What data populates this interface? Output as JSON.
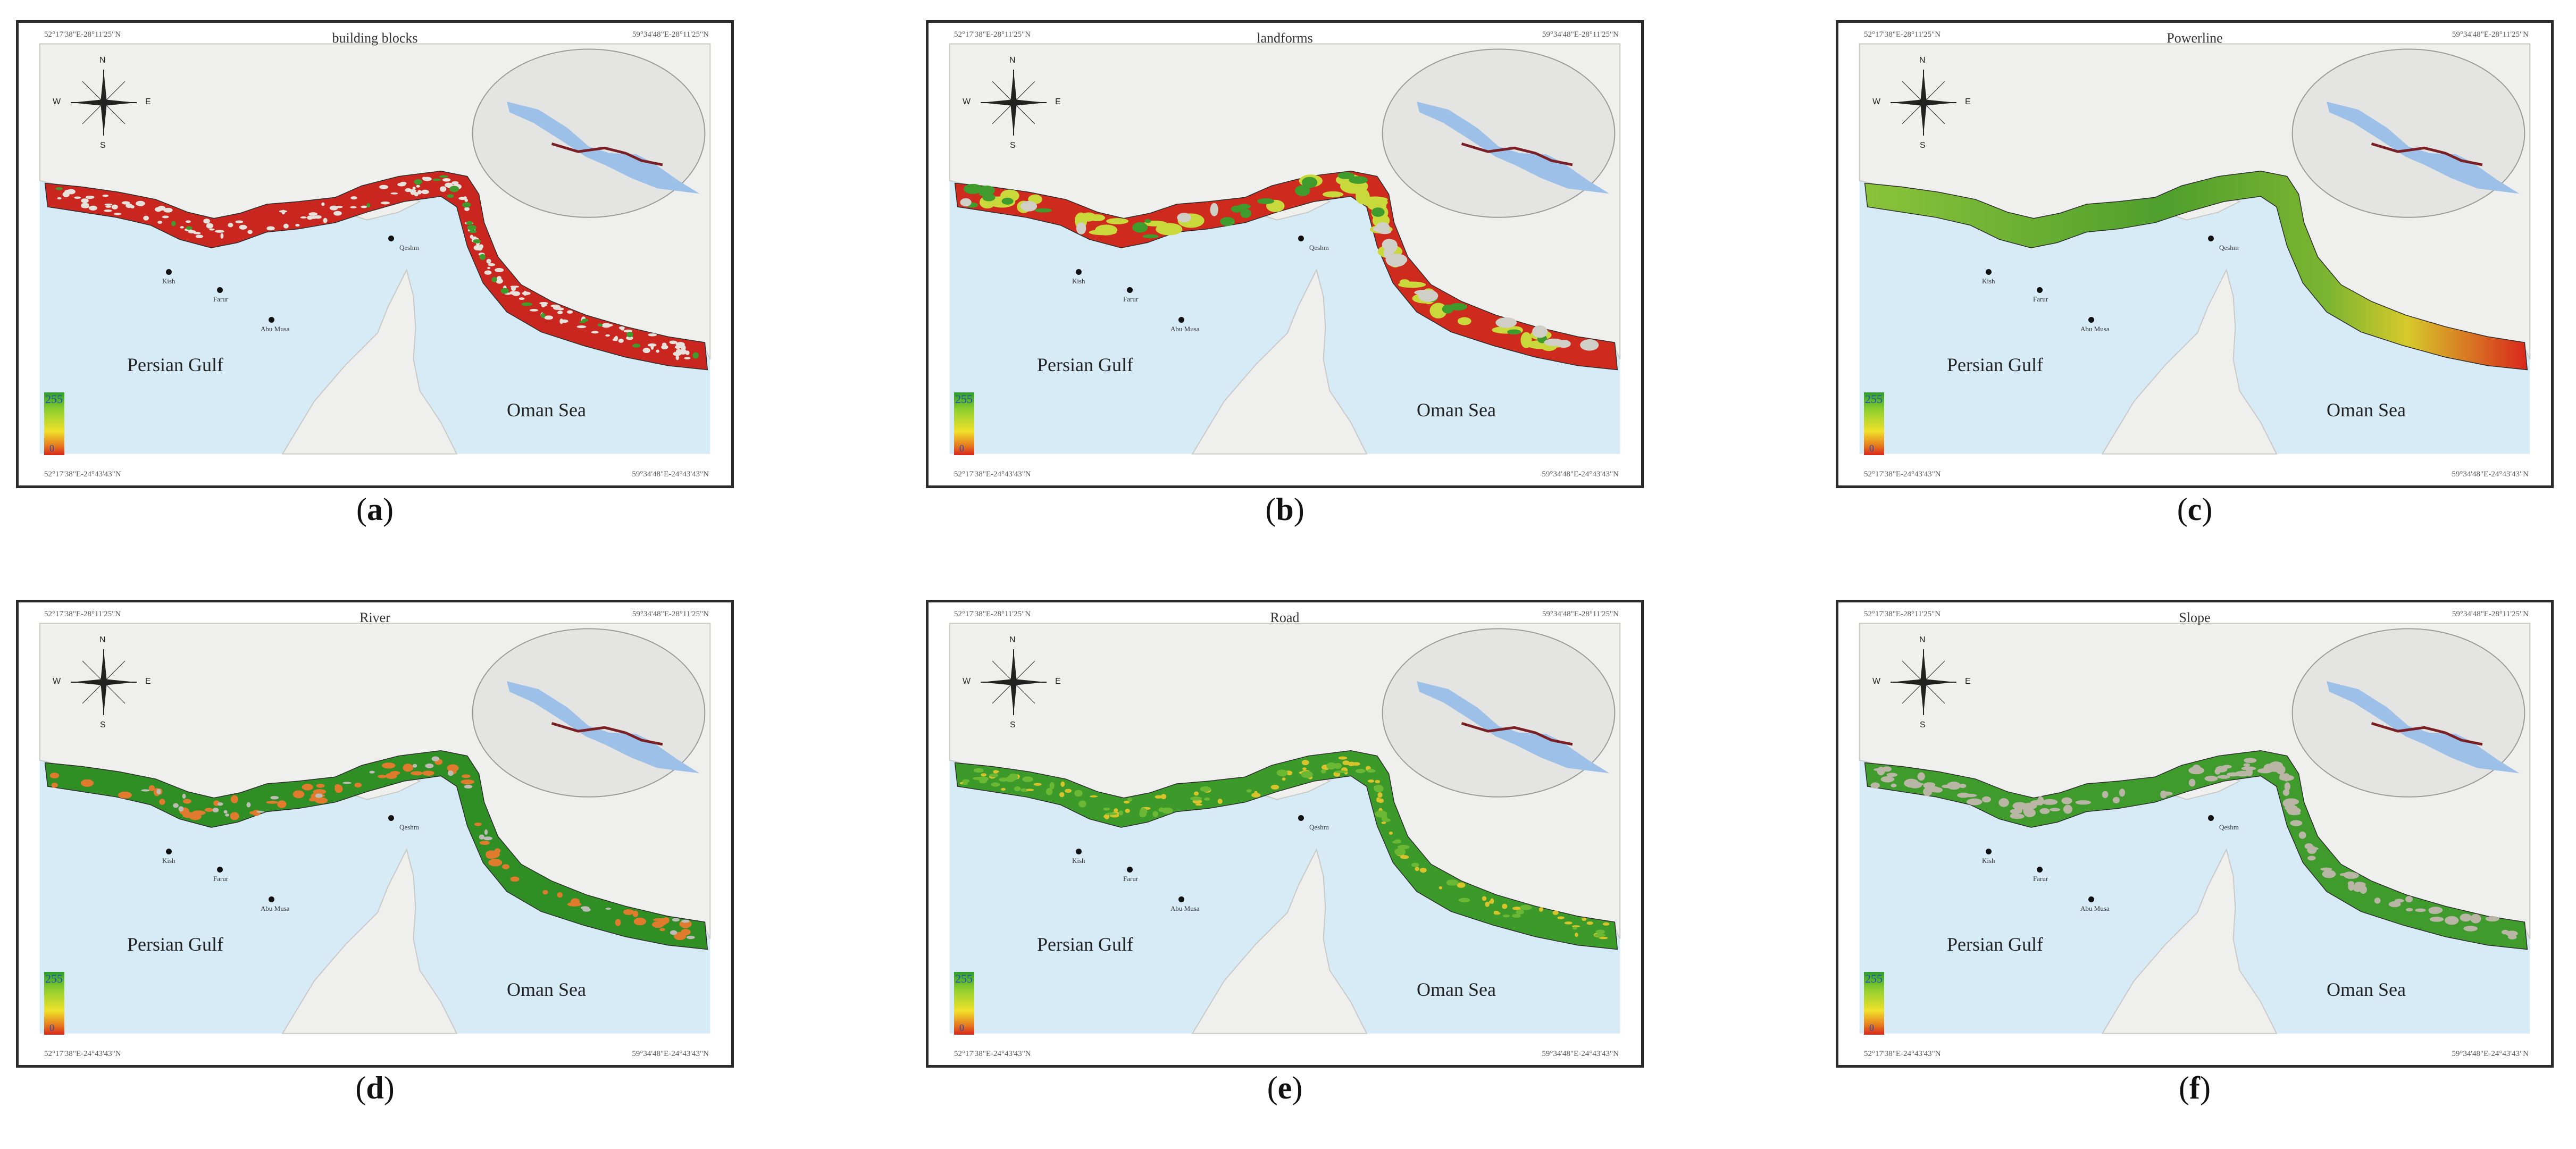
{
  "colors": {
    "sea": "#d6ebf6",
    "land": "#efefed",
    "inset_sea": "#9cc0e8",
    "coast_line": "#7a1f24",
    "legend_high": "#2e9e2a",
    "legend_mid": "#f1e12a",
    "legend_low": "#d9271c"
  },
  "map_labels": {
    "coord_top_left": "52°17'38\"E-28°11'25\"N",
    "coord_top_right": "59°34'48\"E-28°11'25\"N",
    "coord_bottom_left": "52°17'38\"E-24°43'43\"N",
    "coord_bottom_right": "59°34'48\"E-24°43'43\"N",
    "sea_west": "Persian Gulf",
    "sea_east": "Oman Sea",
    "city_1": "Kish",
    "city_2": "Farur",
    "city_3": "Abu Musa",
    "city_4": "Qeshm",
    "compass_n": "N",
    "compass_s": "S",
    "compass_e": "E",
    "compass_w": "W",
    "legend_max": "255",
    "legend_min": "0"
  },
  "panels": [
    {
      "title": "building blocks",
      "caption": "a",
      "band_style": "mottled-red"
    },
    {
      "title": "landforms",
      "caption": "b",
      "band_style": "red-yellow-patches"
    },
    {
      "title": "Powerline",
      "caption": "c",
      "band_style": "green-to-red-east"
    },
    {
      "title": "River",
      "caption": "d",
      "band_style": "green-orange-spots"
    },
    {
      "title": "Road",
      "caption": "e",
      "band_style": "green-speckled"
    },
    {
      "title": "Slope",
      "caption": "f",
      "band_style": "green-grey"
    }
  ]
}
